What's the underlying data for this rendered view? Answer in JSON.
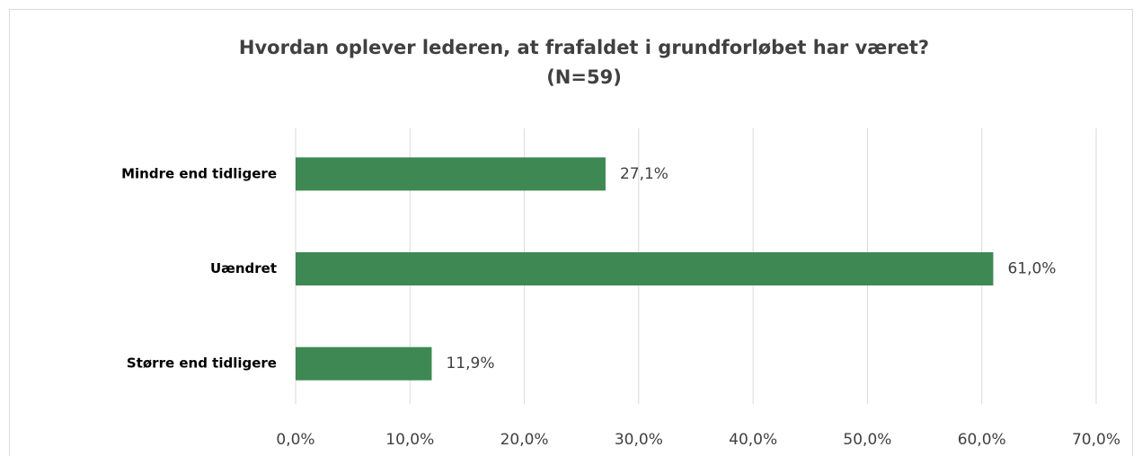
{
  "chart_data": {
    "type": "hbar",
    "title": [
      "Hvordan oplever lederen, at frafaldet i grundforløbet har været?",
      "(N=59)"
    ],
    "categories": [
      "Mindre end tidligere",
      "Uændret",
      "Større end tidligere"
    ],
    "values": [
      27.1,
      61.0,
      11.9
    ],
    "value_labels": [
      "27,1%",
      "61,0%",
      "11,9%"
    ],
    "color": "#3e8853",
    "xlim": [
      0,
      70
    ],
    "xticks": [
      {
        "value": 0,
        "label": "0,0%"
      },
      {
        "value": 10,
        "label": "10,0%"
      },
      {
        "value": 20,
        "label": "20,0%"
      },
      {
        "value": 30,
        "label": "30,0%"
      },
      {
        "value": 40,
        "label": "40,0%"
      },
      {
        "value": 50,
        "label": "50,0%"
      },
      {
        "value": 60,
        "label": "60,0%"
      },
      {
        "value": 70,
        "label": "70,0%"
      }
    ],
    "grid": true
  }
}
